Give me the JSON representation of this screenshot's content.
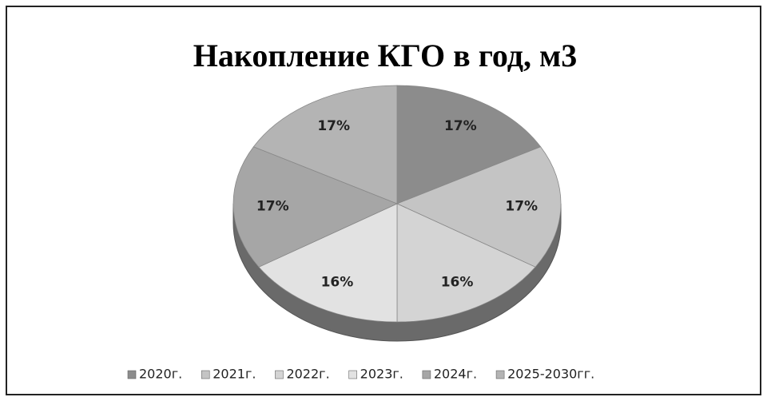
{
  "chart_data": {
    "type": "pie",
    "title": "Накопление КГО в год, м3",
    "categories": [
      "2020г.",
      "2021г.",
      "2022г.",
      "2023г.",
      "2024г.",
      "2025-2030гг."
    ],
    "values": [
      17,
      17,
      16,
      16,
      17,
      17
    ],
    "value_labels": [
      "17%",
      "17%",
      "16%",
      "16%",
      "17%",
      "17%"
    ],
    "colors": [
      "#8c8c8c",
      "#c4c4c4",
      "#d4d4d4",
      "#e2e2e2",
      "#a6a6a6",
      "#b4b4b4"
    ],
    "legend": "bottom"
  }
}
